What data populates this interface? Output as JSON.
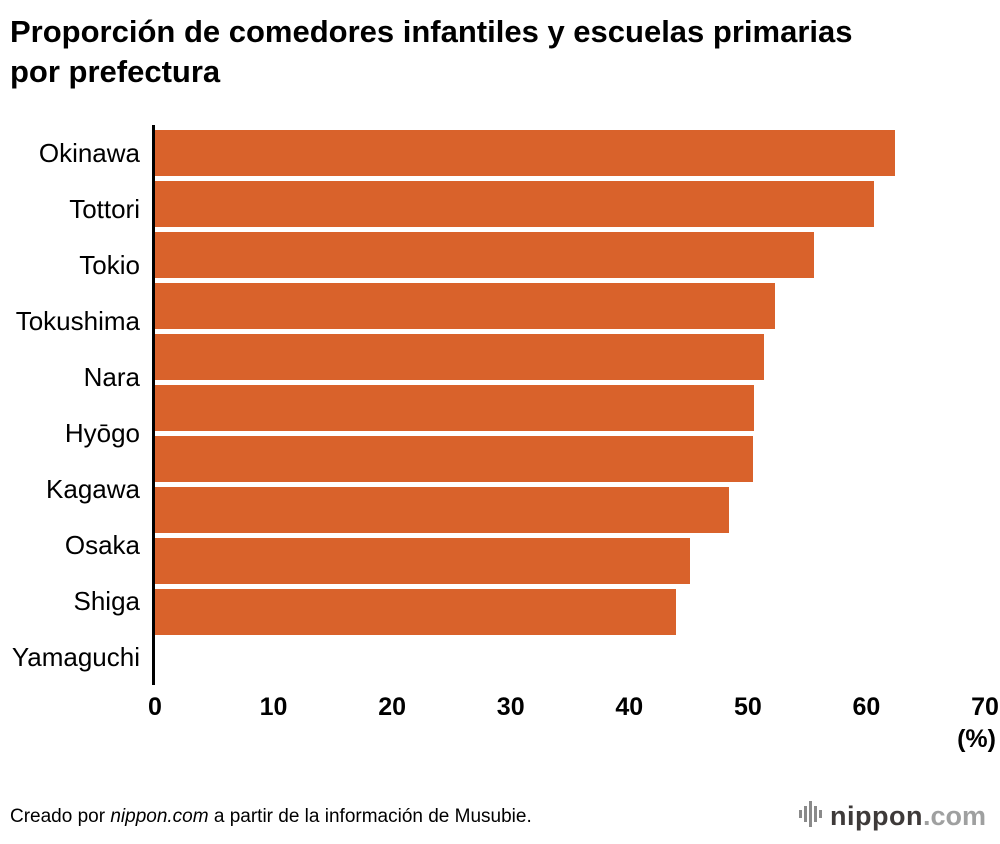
{
  "title": "Proporción de comedores infantiles y escuelas primarias por prefectura",
  "chart_data": {
    "type": "bar",
    "orientation": "horizontal",
    "title": "Proporción de comedores infantiles y escuelas primarias por prefectura",
    "categories": [
      "Okinawa",
      "Tottori",
      "Tokio",
      "Tokushima",
      "Nara",
      "Hyōgo",
      "Kagawa",
      "Osaka",
      "Shiga",
      "Yamaguchi"
    ],
    "values": [
      62.4,
      60.6,
      55.6,
      52.3,
      51.4,
      50.5,
      50.4,
      48.4,
      45.1,
      43.9
    ],
    "xlim": [
      0,
      70
    ],
    "xticks": [
      0,
      10,
      20,
      30,
      40,
      50,
      60,
      70
    ],
    "x_unit_label": "(%)",
    "xlabel": "(%)",
    "ylabel": "",
    "grid": false,
    "legend": "none",
    "bar_color": "#d9622b"
  },
  "footer": {
    "credit_prefix": "Creado por ",
    "credit_source": "nippon.com",
    "credit_suffix": " a partir de la información de Musubie.",
    "logo_name": "nippon",
    "logo_tld": ".com"
  }
}
